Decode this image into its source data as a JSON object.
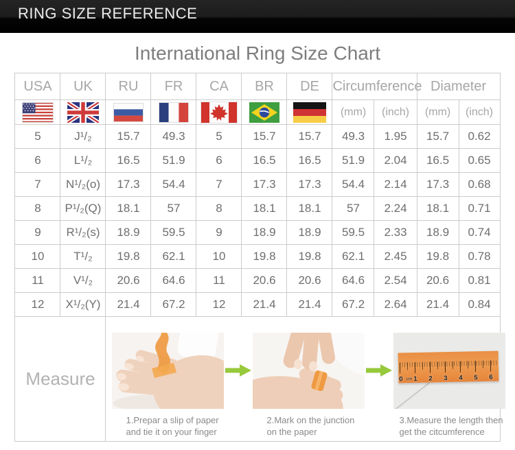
{
  "header_bar": {
    "title": "RING SIZE REFERENCE"
  },
  "page_title": "International Ring Size Chart",
  "table": {
    "country_columns": [
      "USA",
      "UK",
      "RU",
      "FR",
      "CA",
      "BR",
      "DE"
    ],
    "flag_icons": [
      "usa-flag",
      "uk-flag",
      "ru-flag",
      "fr-flag",
      "ca-flag",
      "br-flag",
      "de-flag"
    ],
    "group_columns": [
      {
        "label": "Circumference",
        "units": [
          "(mm)",
          "(inch)"
        ]
      },
      {
        "label": "Diameter",
        "units": [
          "(mm)",
          "(inch)"
        ]
      }
    ],
    "column_keys": [
      "usa",
      "uk",
      "ru",
      "fr",
      "ca",
      "br",
      "de",
      "circ_mm",
      "circ_inch",
      "dia_mm",
      "dia_inch"
    ],
    "rows": [
      {
        "usa": "5",
        "uk": "J¹/₂",
        "ru": "15.7",
        "fr": "49.3",
        "ca": "5",
        "br": "15.7",
        "de": "15.7",
        "circ_mm": "49.3",
        "circ_inch": "1.95",
        "dia_mm": "15.7",
        "dia_inch": "0.62"
      },
      {
        "usa": "6",
        "uk": "L¹/₂",
        "ru": "16.5",
        "fr": "51.9",
        "ca": "6",
        "br": "16.5",
        "de": "16.5",
        "circ_mm": "51.9",
        "circ_inch": "2.04",
        "dia_mm": "16.5",
        "dia_inch": "0.65"
      },
      {
        "usa": "7",
        "uk": "N¹/₂(o)",
        "ru": "17.3",
        "fr": "54.4",
        "ca": "7",
        "br": "17.3",
        "de": "17.3",
        "circ_mm": "54.4",
        "circ_inch": "2.14",
        "dia_mm": "17.3",
        "dia_inch": "0.68"
      },
      {
        "usa": "8",
        "uk": "P¹/₂(Q)",
        "ru": "18.1",
        "fr": "57",
        "ca": "8",
        "br": "18.1",
        "de": "18.1",
        "circ_mm": "57",
        "circ_inch": "2.24",
        "dia_mm": "18.1",
        "dia_inch": "0.71"
      },
      {
        "usa": "9",
        "uk": "R¹/₂(s)",
        "ru": "18.9",
        "fr": "59.5",
        "ca": "9",
        "br": "18.9",
        "de": "18.9",
        "circ_mm": "59.5",
        "circ_inch": "2.33",
        "dia_mm": "18.9",
        "dia_inch": "0.74"
      },
      {
        "usa": "10",
        "uk": "T¹/₂",
        "ru": "19.8",
        "fr": "62.1",
        "ca": "10",
        "br": "19.8",
        "de": "19.8",
        "circ_mm": "62.1",
        "circ_inch": "2.45",
        "dia_mm": "19.8",
        "dia_inch": "0.78"
      },
      {
        "usa": "11",
        "uk": "V¹/₂",
        "ru": "20.6",
        "fr": "64.6",
        "ca": "11",
        "br": "20.6",
        "de": "20.6",
        "circ_mm": "64.6",
        "circ_inch": "2.54",
        "dia_mm": "20.6",
        "dia_inch": "0.81"
      },
      {
        "usa": "12",
        "uk": "X¹/₂(Y)",
        "ru": "21.4",
        "fr": "67.2",
        "ca": "12",
        "br": "21.4",
        "de": "21.4",
        "circ_mm": "67.2",
        "circ_inch": "2.64",
        "dia_mm": "21.4",
        "dia_inch": "0.84"
      }
    ]
  },
  "measure": {
    "label": "Measure",
    "arrow_icon": "green-right-arrow-icon",
    "arrow_color": "#97c93c",
    "steps": [
      {
        "illustration": "hand-with-paper-strip-photo",
        "caption": "1.Prepar a slip of paper\nand tie it on your finger"
      },
      {
        "illustration": "mark-junction-photo",
        "caption": "2.Mark on the junction\non the paper"
      },
      {
        "illustration": "ruler-measure-photo",
        "caption": "3.Measure the length then\nget the citcumference"
      }
    ],
    "ruler_labels": [
      "0",
      "cm",
      "1",
      "2",
      "3",
      "4",
      "5",
      "6"
    ]
  },
  "colors": {
    "header_bar_bg": "#000000",
    "border": "#cbcbcb",
    "title_text": "#7d7d7d",
    "header_text": "#a6a6a6",
    "data_text": "#6e6e6e",
    "caption_text": "#8a8a8a",
    "arrow_green": "#97c93c",
    "strip_orange": "#e98f44"
  }
}
